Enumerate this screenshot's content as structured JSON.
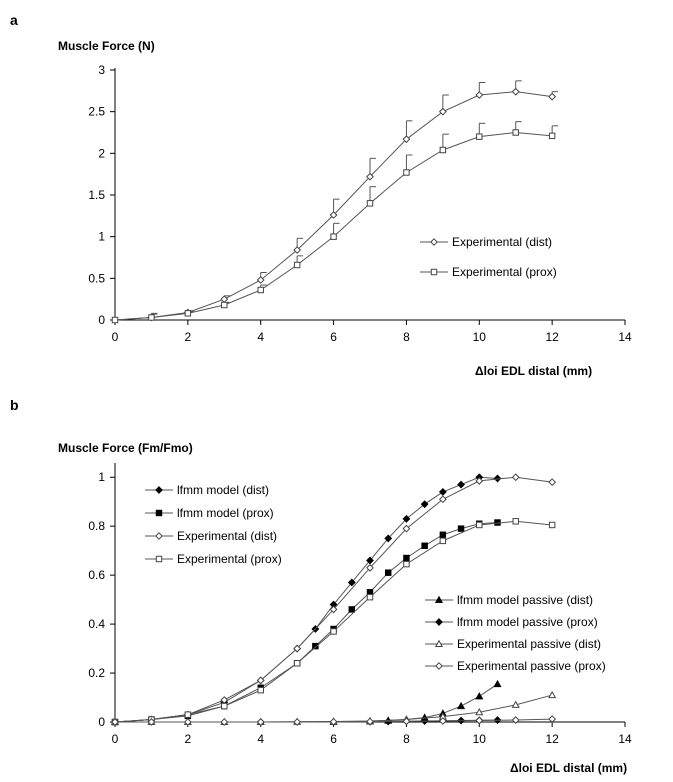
{
  "chart_data": [
    {
      "panel": "a",
      "type": "line",
      "ylabel": "Muscle Force (N)",
      "xlabel": "Δloi EDL distal (mm)",
      "xlim": [
        0,
        14
      ],
      "ylim": [
        0,
        3
      ],
      "xticks": [
        0,
        2,
        4,
        6,
        8,
        10,
        12,
        14
      ],
      "yticks": [
        0,
        0.5,
        1,
        1.5,
        2,
        2.5,
        3
      ],
      "ytick_labels": [
        "0",
        "0.5",
        "1",
        "1.5",
        "2",
        "2.5",
        "3"
      ],
      "legend_position": "right-middle",
      "series": [
        {
          "name": "Experimental (dist)",
          "marker": "diamond-open",
          "x": [
            0,
            1,
            2,
            3,
            4,
            5,
            6,
            7,
            8,
            9,
            10,
            11,
            12
          ],
          "y": [
            0,
            0.03,
            0.09,
            0.25,
            0.48,
            0.84,
            1.26,
            1.72,
            2.17,
            2.5,
            2.7,
            2.74,
            2.68
          ],
          "err": [
            0,
            0.05,
            0.02,
            0.04,
            0.09,
            0.14,
            0.19,
            0.22,
            0.22,
            0.2,
            0.15,
            0.13,
            0.06
          ]
        },
        {
          "name": "Experimental (prox)",
          "marker": "square-open",
          "x": [
            0,
            1,
            2,
            3,
            4,
            5,
            6,
            7,
            8,
            9,
            10,
            11,
            12
          ],
          "y": [
            0,
            0.03,
            0.08,
            0.18,
            0.36,
            0.66,
            1.0,
            1.4,
            1.77,
            2.04,
            2.2,
            2.25,
            2.21
          ],
          "err": [
            0,
            0.04,
            0.02,
            0.03,
            0.06,
            0.11,
            0.16,
            0.2,
            0.21,
            0.19,
            0.16,
            0.13,
            0.12
          ]
        }
      ]
    },
    {
      "panel": "b",
      "type": "line",
      "ylabel": "Muscle Force (Fm/Fmo)",
      "xlabel": "Δloi EDL distal (mm)",
      "xlim": [
        0,
        14
      ],
      "ylim": [
        0,
        1.05
      ],
      "xticks": [
        0,
        2,
        4,
        6,
        8,
        10,
        12,
        14
      ],
      "yticks": [
        0,
        0.2,
        0.4,
        0.6,
        0.8,
        1
      ],
      "ytick_labels": [
        "0",
        "0.2",
        "0.4",
        "0.6",
        "0.8",
        "1"
      ],
      "legend_position": "top-left and right",
      "series": [
        {
          "name": "lfmm model (dist)",
          "marker": "diamond-filled",
          "x": [
            0,
            1,
            2,
            3,
            4,
            5,
            5.5,
            6,
            6.5,
            7,
            7.5,
            8,
            8.5,
            9,
            9.5,
            10,
            10.5
          ],
          "y": [
            0,
            0.01,
            0.03,
            0.08,
            0.17,
            0.3,
            0.38,
            0.48,
            0.57,
            0.66,
            0.75,
            0.83,
            0.89,
            0.94,
            0.97,
            1.0,
            0.995
          ]
        },
        {
          "name": "lfmm model (prox)",
          "marker": "square-filled",
          "x": [
            0,
            1,
            2,
            3,
            4,
            5,
            5.5,
            6,
            6.5,
            7,
            7.5,
            8,
            8.5,
            9,
            9.5,
            10,
            10.5
          ],
          "y": [
            0,
            0.01,
            0.025,
            0.065,
            0.14,
            0.24,
            0.31,
            0.38,
            0.46,
            0.53,
            0.61,
            0.67,
            0.72,
            0.765,
            0.79,
            0.81,
            0.815
          ]
        },
        {
          "name": "Experimental (dist)",
          "marker": "diamond-open",
          "x": [
            0,
            1,
            2,
            3,
            4,
            5,
            6,
            7,
            8,
            9,
            10,
            11,
            12
          ],
          "y": [
            0,
            0.01,
            0.03,
            0.09,
            0.17,
            0.3,
            0.46,
            0.63,
            0.79,
            0.91,
            0.985,
            1.0,
            0.98
          ]
        },
        {
          "name": "Experimental (prox)",
          "marker": "square-open",
          "x": [
            0,
            1,
            2,
            3,
            4,
            5,
            6,
            7,
            8,
            9,
            10,
            11,
            12
          ],
          "y": [
            0,
            0.01,
            0.03,
            0.065,
            0.13,
            0.24,
            0.37,
            0.51,
            0.645,
            0.74,
            0.805,
            0.82,
            0.805
          ]
        },
        {
          "name": "lfmm model passive (dist)",
          "marker": "triangle-filled",
          "x": [
            0,
            4,
            6,
            7,
            7.5,
            8,
            8.5,
            9,
            9.5,
            10,
            10.5
          ],
          "y": [
            0,
            0,
            0.001,
            0.003,
            0.006,
            0.01,
            0.018,
            0.035,
            0.065,
            0.105,
            0.155
          ]
        },
        {
          "name": "lfmm model passive (prox)",
          "marker": "diamond-filled",
          "x": [
            0,
            4,
            6,
            7,
            7.5,
            8,
            8.5,
            9,
            9.5,
            10,
            10.5
          ],
          "y": [
            0,
            0,
            0,
            0.001,
            0.002,
            0.003,
            0.004,
            0.005,
            0.006,
            0.007,
            0.008
          ]
        },
        {
          "name": "Experimental passive (dist)",
          "marker": "triangle-open",
          "x": [
            0,
            1,
            2,
            3,
            4,
            5,
            6,
            7,
            8,
            9,
            10,
            11,
            12
          ],
          "y": [
            0,
            0,
            0,
            0,
            0,
            0.001,
            0.002,
            0.004,
            0.01,
            0.022,
            0.04,
            0.07,
            0.11
          ]
        },
        {
          "name": "Experimental passive (prox)",
          "marker": "diamond-open",
          "x": [
            0,
            1,
            2,
            3,
            4,
            5,
            6,
            7,
            8,
            9,
            10,
            11,
            12
          ],
          "y": [
            0,
            0,
            0,
            0,
            0,
            0,
            0.001,
            0.002,
            0.003,
            0.004,
            0.006,
            0.008,
            0.012
          ]
        }
      ]
    }
  ]
}
